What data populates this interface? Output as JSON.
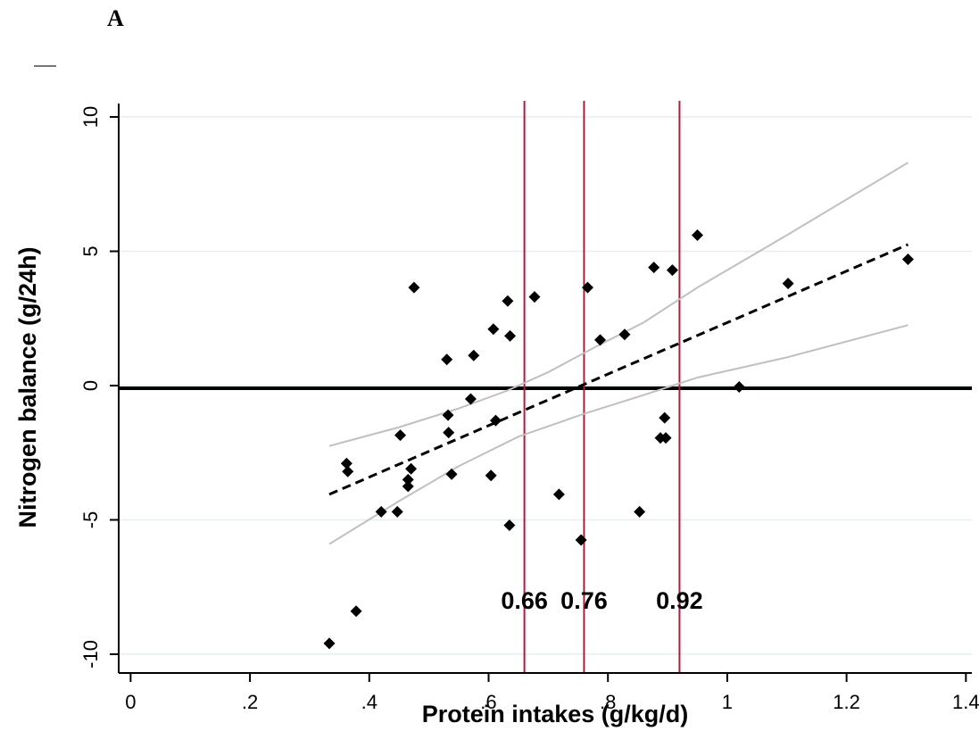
{
  "panel_label": "A",
  "chart_data": {
    "type": "scatter",
    "title": "",
    "xlabel": "Protein intakes (g/kg/d)",
    "ylabel": "Nitrogen balance (g/24h)",
    "xlim": [
      -0.02,
      1.41
    ],
    "ylim": [
      -10.7,
      10.5
    ],
    "x_ticks": [
      0,
      0.2,
      0.4,
      0.6,
      0.8,
      1.0,
      1.2,
      1.4
    ],
    "x_tick_labels": [
      "0",
      ".2",
      ".4",
      ".6",
      ".8",
      "1",
      "1.2",
      "1.4"
    ],
    "y_ticks": [
      -10,
      -5,
      0,
      5,
      10
    ],
    "y_tick_labels": [
      "-10",
      "-5",
      "0",
      "5",
      "10"
    ],
    "grid": "horizontal",
    "colors": {
      "points": "#000000",
      "fit_line": "#000000",
      "confidence_band": "#c0c0c0",
      "reference_lines": "#b01c3c",
      "zero_line": "#000000",
      "grid": "#e6eef0"
    },
    "series": [
      {
        "type": "scatter",
        "marker": "diamond",
        "points": [
          [
            0.333,
            -9.6
          ],
          [
            0.378,
            -8.4
          ],
          [
            0.362,
            -2.9
          ],
          [
            0.364,
            -3.2
          ],
          [
            0.42,
            -4.7
          ],
          [
            0.447,
            -4.7
          ],
          [
            0.452,
            -1.85
          ],
          [
            0.465,
            -3.5
          ],
          [
            0.465,
            -3.75
          ],
          [
            0.47,
            -3.1
          ],
          [
            0.475,
            3.65
          ],
          [
            0.53,
            0.97
          ],
          [
            0.532,
            -1.1
          ],
          [
            0.533,
            -1.75
          ],
          [
            0.538,
            -3.3
          ],
          [
            0.57,
            -0.5
          ],
          [
            0.575,
            1.12
          ],
          [
            0.604,
            -3.35
          ],
          [
            0.608,
            2.1
          ],
          [
            0.612,
            -1.3
          ],
          [
            0.632,
            3.15
          ],
          [
            0.635,
            -5.2
          ],
          [
            0.636,
            1.85
          ],
          [
            0.677,
            3.3
          ],
          [
            0.718,
            -4.05
          ],
          [
            0.755,
            -5.75
          ],
          [
            0.766,
            3.65
          ],
          [
            0.787,
            1.7
          ],
          [
            0.828,
            1.9
          ],
          [
            0.853,
            -4.7
          ],
          [
            0.877,
            4.4
          ],
          [
            0.888,
            -1.95
          ],
          [
            0.895,
            -1.2
          ],
          [
            0.897,
            -1.95
          ],
          [
            0.908,
            4.3
          ],
          [
            0.95,
            5.6
          ],
          [
            1.02,
            -0.05
          ],
          [
            1.102,
            3.8
          ],
          [
            1.303,
            4.7
          ]
        ]
      },
      {
        "type": "fit",
        "style": "dashed",
        "points": [
          [
            0.333,
            -4.05
          ],
          [
            1.303,
            5.25
          ]
        ]
      },
      {
        "type": "confidence_band_upper",
        "points": [
          [
            0.333,
            -2.25
          ],
          [
            0.45,
            -1.55
          ],
          [
            0.55,
            -0.85
          ],
          [
            0.63,
            -0.2
          ],
          [
            0.7,
            0.5
          ],
          [
            0.78,
            1.45
          ],
          [
            0.86,
            2.35
          ],
          [
            0.95,
            3.65
          ],
          [
            1.1,
            5.6
          ],
          [
            1.303,
            8.3
          ]
        ]
      },
      {
        "type": "confidence_band_lower",
        "points": [
          [
            0.333,
            -5.9
          ],
          [
            0.45,
            -4.3
          ],
          [
            0.55,
            -3.0
          ],
          [
            0.65,
            -1.9
          ],
          [
            0.76,
            -1.05
          ],
          [
            0.86,
            -0.35
          ],
          [
            0.95,
            0.3
          ],
          [
            1.1,
            1.05
          ],
          [
            1.303,
            2.25
          ]
        ]
      }
    ],
    "reference_lines": [
      {
        "axis": "y",
        "value": -0.1
      },
      {
        "axis": "x",
        "value": 0.66,
        "label": "0.66"
      },
      {
        "axis": "x",
        "value": 0.76,
        "label": "0.76"
      },
      {
        "axis": "x",
        "value": 0.92,
        "label": "0.92"
      }
    ]
  }
}
